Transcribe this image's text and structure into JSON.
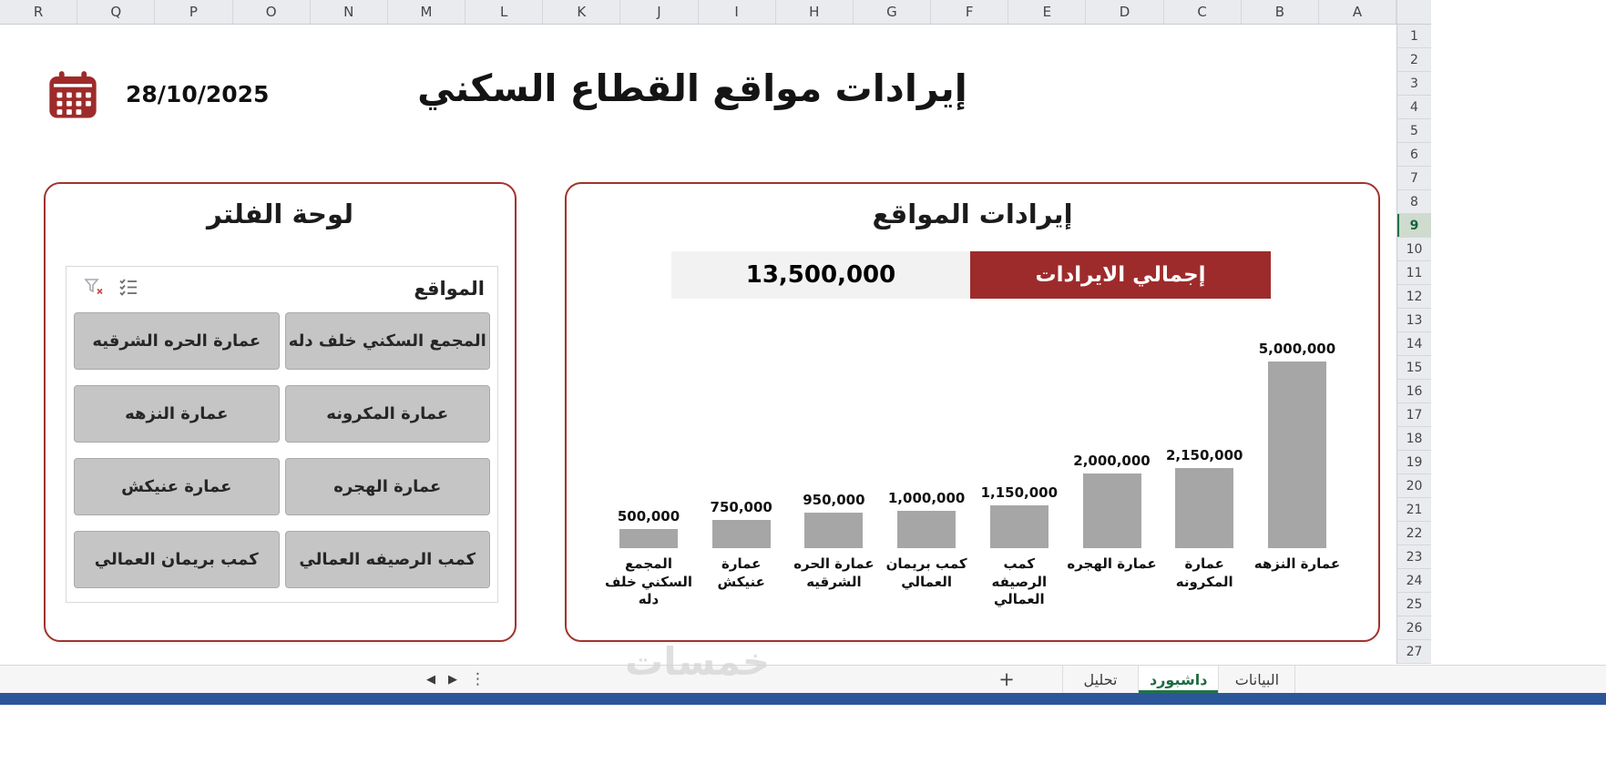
{
  "spreadsheet": {
    "column_headers": [
      "R",
      "Q",
      "P",
      "O",
      "N",
      "M",
      "L",
      "K",
      "J",
      "I",
      "H",
      "G",
      "F",
      "E",
      "D",
      "C",
      "B",
      "A"
    ],
    "row_numbers": [
      "1",
      "2",
      "3",
      "4",
      "5",
      "6",
      "7",
      "8",
      "9",
      "10",
      "11",
      "12",
      "13",
      "14",
      "15",
      "16",
      "17",
      "18",
      "19",
      "20",
      "21",
      "22",
      "23",
      "24",
      "25",
      "26",
      "27"
    ],
    "selected_row": "9"
  },
  "header": {
    "title": "إيرادات مواقع القطاع السكني",
    "date": "28/10/2025",
    "calendar_icon": "calendar-icon"
  },
  "filter_panel": {
    "title": "لوحة الفلتر",
    "slicer": {
      "caption": "المواقع",
      "clear_filter_icon": "funnel-x",
      "multi_select_icon": "checklist",
      "buttons": [
        "المجمع السكني خلف دله",
        "عمارة الحره الشرقيه",
        "عمارة المكرونه",
        "عمارة النزهه",
        "عمارة الهجره",
        "عمارة عنيكش",
        "كمب الرصيفه العمالي",
        "كمب بريمان العمالي"
      ]
    }
  },
  "revenue_panel": {
    "title": "إيرادات المواقع",
    "total_value": "13,500,000",
    "total_label": "إجمالي الايرادات"
  },
  "chart_data": {
    "type": "bar",
    "title": "إيرادات المواقع",
    "categories": [
      "المجمع السكني خلف دله",
      "عمارة عنيكش",
      "عمارة الحره الشرقيه",
      "كمب بريمان العمالي",
      "كمب الرصيفه العمالي",
      "عمارة الهجره",
      "عمارة المكرونه",
      "عمارة النزهه"
    ],
    "values": [
      500000,
      750000,
      950000,
      1000000,
      1150000,
      2000000,
      2150000,
      5000000
    ],
    "value_labels": [
      "500,000",
      "750,000",
      "950,000",
      "1,000,000",
      "1,150,000",
      "2,000,000",
      "2,150,000",
      "5,000,000"
    ],
    "xlabel": "",
    "ylabel": "",
    "ylim": [
      0,
      5000000
    ],
    "grid": false,
    "legend": false,
    "bar_color": "#A6A6A6"
  },
  "tab_bar": {
    "nav_icons": [
      "sheet-prev",
      "sheet-next",
      "sheet-more"
    ],
    "watermark": "خمسات",
    "add_sheet_label": "+",
    "tabs": [
      {
        "label": "تحليل",
        "active": false
      },
      {
        "label": "داشبورد",
        "active": true
      },
      {
        "label": "البيانات",
        "active": false
      }
    ]
  },
  "colors": {
    "accent_red": "#9E2B2B",
    "card_border": "#A0342E",
    "bar_gray": "#A6A6A6",
    "slicer_button_bg": "#C5C5C5",
    "total_value_bg": "#F2F2F2",
    "active_tab_green": "#217346",
    "bottom_bar_blue": "#2B579A",
    "header_gray": "#E9EBEE"
  }
}
